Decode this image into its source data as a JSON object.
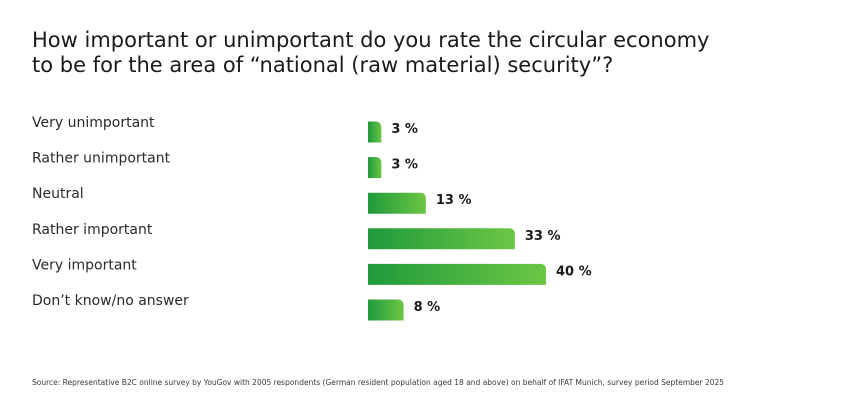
{
  "chart_data": {
    "type": "bar",
    "orientation": "horizontal",
    "title": [
      "How important or unimportant do you rate the circular economy",
      "to be for the area of “national (raw material) security”?"
    ],
    "categories": [
      "Very unimportant",
      "Rather unimportant",
      "Neutral",
      "Rather important",
      "Very important",
      "Don’t know/no answer"
    ],
    "values": [
      3,
      3,
      13,
      33,
      40,
      8
    ],
    "value_labels": [
      "3 %",
      "3 %",
      "13 %",
      "33 %",
      "40 %",
      "8 %"
    ],
    "unit": "%",
    "xlim": [
      0,
      40
    ],
    "grid": false,
    "legend": "none",
    "bar_color_start": "#1f9a3c",
    "bar_color_end": "#6cc644"
  },
  "source": "Source: Representative B2C online survey by YouGov with 2005 respondents (German resident population aged 18 and above) on behalf of IFAT Munich, survey period September 2025"
}
